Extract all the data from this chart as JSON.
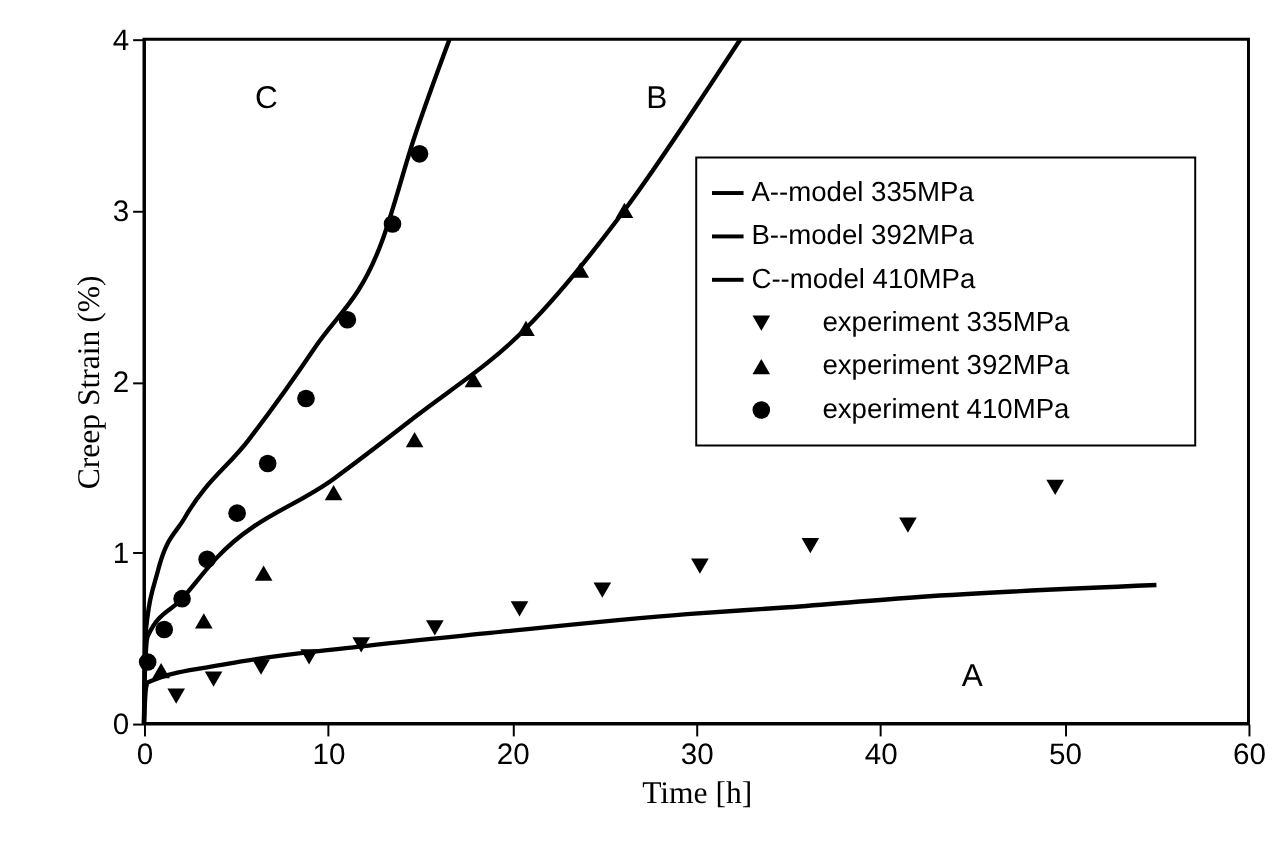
{
  "chart_data": {
    "type": "line",
    "xlabel": "Time [h]",
    "ylabel": "Creep Strain (%)",
    "xlim": [
      0,
      60
    ],
    "ylim": [
      0,
      4
    ],
    "xticks": [
      0,
      10,
      20,
      30,
      40,
      50,
      60
    ],
    "yticks": [
      0,
      1,
      2,
      3,
      4
    ],
    "grid": false,
    "legend": "top right",
    "series": [
      {
        "name": "A--model 335MPa",
        "type": "line",
        "line_style": "solid",
        "color": "#000000",
        "marker": "none",
        "x": [
          0,
          0.1,
          0.2,
          4.6,
          11.7,
          18.8,
          29.5,
          35,
          42.1,
          55.0
        ],
        "values": [
          0,
          0.2,
          0.24,
          0.35,
          0.45,
          0.53,
          0.64,
          0.68,
          0.74,
          0.81
        ]
      },
      {
        "name": "B--model 392MPa",
        "type": "line",
        "line_style": "solid",
        "color": "#000000",
        "marker": "none",
        "x": [
          0,
          0.05,
          0.2,
          2.07,
          3.96,
          10.3,
          14.7,
          20.75,
          26.1,
          30.75,
          32.4
        ],
        "values": [
          0,
          0.3,
          0.51,
          0.73,
          0.97,
          1.43,
          1.79,
          2.31,
          3.0,
          3.73,
          4.0
        ]
      },
      {
        "name": "C--model 410MPa",
        "type": "line",
        "line_style": "solid",
        "color": "#000000",
        "marker": "none",
        "x": [
          0,
          0.07,
          0.75,
          2.2,
          5.7,
          9.3,
          12.9,
          14.7,
          16.6
        ],
        "values": [
          0,
          0.51,
          0.89,
          1.2,
          1.66,
          2.2,
          2.81,
          3.43,
          4.0
        ]
      },
      {
        "name": "experiment 335MPa",
        "type": "scatter",
        "color": "#000000",
        "marker": "triangle-down",
        "x": [
          1.75,
          3.78,
          6.36,
          8.97,
          11.8,
          15.8,
          20.4,
          24.9,
          30.2,
          36.2,
          41.5,
          49.5
        ],
        "values": [
          0.16,
          0.26,
          0.33,
          0.39,
          0.46,
          0.56,
          0.67,
          0.78,
          0.92,
          1.04,
          1.16,
          1.38
        ]
      },
      {
        "name": "experiment 392MPa",
        "type": "scatter",
        "color": "#000000",
        "marker": "triangle",
        "x": [
          0.93,
          3.25,
          6.5,
          10.3,
          14.7,
          17.9,
          20.75,
          23.7,
          26.1
        ],
        "values": [
          0.31,
          0.6,
          0.88,
          1.35,
          1.66,
          2.01,
          2.31,
          2.65,
          3.0
        ]
      },
      {
        "name": "experiment 410MPa",
        "type": "scatter",
        "color": "#000000",
        "marker": "circle",
        "x": [
          0.2,
          1.1,
          2.07,
          3.43,
          5.06,
          6.72,
          8.8,
          11.05,
          13.5,
          14.97
        ],
        "values": [
          0.36,
          0.55,
          0.73,
          0.96,
          1.23,
          1.52,
          1.9,
          2.36,
          2.92,
          3.33
        ]
      }
    ],
    "annotations": [
      "C",
      "B",
      "A"
    ]
  }
}
